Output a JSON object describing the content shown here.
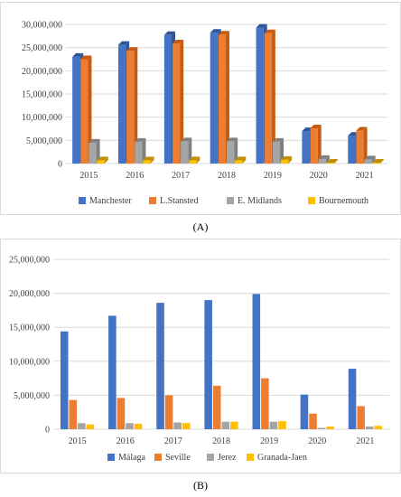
{
  "chart_data": [
    {
      "type": "bar",
      "style": "3d",
      "categories": [
        "2015",
        "2016",
        "2017",
        "2018",
        "2019",
        "2020",
        "2021"
      ],
      "series": [
        {
          "name": "Manchester",
          "values": [
            23000000,
            25600000,
            27700000,
            28200000,
            29300000,
            7000000,
            6000000
          ]
        },
        {
          "name": "L.Stansted",
          "values": [
            22500000,
            24300000,
            25900000,
            27800000,
            28100000,
            7600000,
            7100000
          ]
        },
        {
          "name": "E. Midlands",
          "values": [
            4500000,
            4700000,
            4800000,
            4800000,
            4700000,
            1000000,
            900000
          ]
        },
        {
          "name": "Bournemouth",
          "values": [
            700000,
            700000,
            700000,
            700000,
            800000,
            200000,
            200000
          ]
        }
      ],
      "ylim": [
        0,
        30000000
      ],
      "yticks": [
        "0",
        "5,000,000",
        "10,000,000",
        "15,000,000",
        "20,000,000",
        "25,000,000",
        "30,000,000"
      ],
      "grid": true,
      "legend_position": "bottom",
      "colors": [
        "#4472c4",
        "#ed7d31",
        "#a5a5a5",
        "#ffc000"
      ],
      "side_colors": [
        "#2f5597",
        "#c55a11",
        "#7f7f7f",
        "#bf8f00"
      ]
    },
    {
      "type": "bar",
      "categories": [
        "2015",
        "2016",
        "2017",
        "2018",
        "2019",
        "2020",
        "2021"
      ],
      "series": [
        {
          "name": "Málaga",
          "values": [
            14400000,
            16700000,
            18600000,
            19000000,
            19900000,
            5100000,
            8900000
          ]
        },
        {
          "name": "Seville",
          "values": [
            4300000,
            4600000,
            5000000,
            6400000,
            7500000,
            2300000,
            3400000
          ]
        },
        {
          "name": "Jerez",
          "values": [
            900000,
            900000,
            1000000,
            1100000,
            1100000,
            200000,
            400000
          ]
        },
        {
          "name": "Granada-Jaen",
          "values": [
            700000,
            800000,
            900000,
            1100000,
            1200000,
            400000,
            500000
          ]
        }
      ],
      "ylim": [
        0,
        25000000
      ],
      "yticks": [
        "0",
        "5,000,000",
        "10,000,000",
        "15,000,000",
        "20,000,000",
        "25,000,000"
      ],
      "grid": true,
      "legend_position": "bottom",
      "colors": [
        "#4472c4",
        "#ed7d31",
        "#a5a5a5",
        "#ffc000"
      ]
    }
  ],
  "captions": {
    "a": "(A)",
    "b": "(B)"
  }
}
